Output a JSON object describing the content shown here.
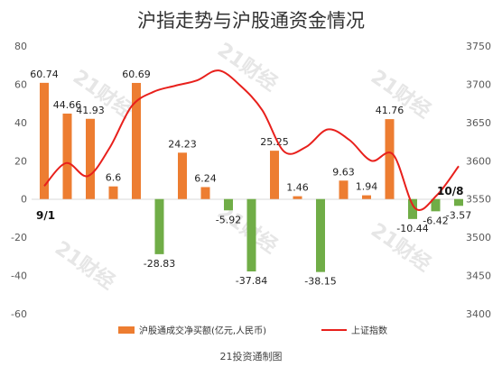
{
  "chart_data": {
    "type": "bar+line",
    "title": "沪指走势与沪股通资金情况",
    "legend": [
      "沪股通成交净买额(亿元,人民币)",
      "上证指数"
    ],
    "legend_position": "bottom",
    "credit": "21投资通制图",
    "watermark": "21财经",
    "colors": {
      "bar_positive": "#ed7d31",
      "bar_negative": "#70ad47",
      "line": "#e8201c"
    },
    "left_axis": {
      "ylim": [
        -60,
        80
      ],
      "ticks": [
        "80",
        "60",
        "40",
        "20",
        "0",
        "-20",
        "-40",
        "-60"
      ]
    },
    "right_axis": {
      "ylim": [
        3400,
        3750
      ],
      "ticks": [
        "3750",
        "3700",
        "3650",
        "3600",
        "3550",
        "3500",
        "3450",
        "3400"
      ]
    },
    "date_labels": [
      "9/1",
      "10/8"
    ],
    "bars": [
      {
        "value": 60.74,
        "label": "60.74"
      },
      {
        "value": 44.66,
        "label": "44.66"
      },
      {
        "value": 41.93,
        "label": "41.93"
      },
      {
        "value": 6.6,
        "label": "6.6"
      },
      {
        "value": 60.69,
        "label": "60.69"
      },
      {
        "value": -28.83,
        "label": "-28.83"
      },
      {
        "value": 24.23,
        "label": "24.23"
      },
      {
        "value": 6.24,
        "label": "6.24"
      },
      {
        "value": -5.92,
        "label": "-5.92"
      },
      {
        "value": -37.84,
        "label": "-37.84"
      },
      {
        "value": 25.25,
        "label": "25.25"
      },
      {
        "value": 1.46,
        "label": "1.46"
      },
      {
        "value": -38.15,
        "label": "-38.15"
      },
      {
        "value": 9.63,
        "label": "9.63"
      },
      {
        "value": 1.94,
        "label": "1.94"
      },
      {
        "value": 41.76,
        "label": "41.76"
      },
      {
        "value": -10.44,
        "label": "-10.44"
      },
      {
        "value": -6.42,
        "label": "-6.42"
      },
      {
        "value": -3.57,
        "label": "-3.57"
      }
    ],
    "line_index": [
      3567,
      3597,
      3580,
      3617,
      3671,
      3690,
      3698,
      3705,
      3718,
      3698,
      3666,
      3612,
      3618,
      3641,
      3627,
      3600,
      3608,
      3538,
      3555,
      3593
    ]
  }
}
